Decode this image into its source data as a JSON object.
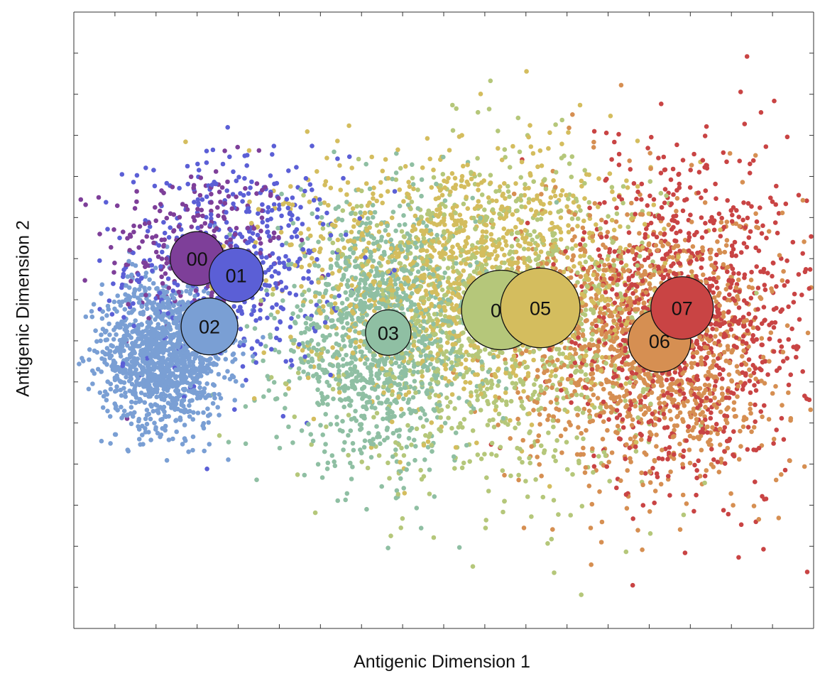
{
  "chart_data": {
    "type": "scatter",
    "xlabel": "Antigenic Dimension 1",
    "ylabel": "Antigenic Dimension 2",
    "xlim": [
      0,
      18
    ],
    "ylim": [
      0,
      15
    ],
    "grid": false,
    "tick_labels_shown": false,
    "point_count_approx": 8000,
    "clusters": [
      {
        "name": "00",
        "x": 3.0,
        "y": 9.0,
        "color": "#7e3f99"
      },
      {
        "name": "01",
        "x": 3.95,
        "y": 8.6,
        "color": "#5b5fd6"
      },
      {
        "name": "02",
        "x": 3.3,
        "y": 7.35,
        "color": "#7a9fd4"
      },
      {
        "name": "03",
        "x": 7.65,
        "y": 7.2,
        "color": "#8fbfa3"
      },
      {
        "name": "04",
        "x": 10.4,
        "y": 7.75,
        "color": "#b5c77a"
      },
      {
        "name": "05",
        "x": 11.35,
        "y": 7.8,
        "color": "#d4bd5e"
      },
      {
        "name": "06",
        "x": 14.25,
        "y": 7.0,
        "color": "#d68f52"
      },
      {
        "name": "07",
        "x": 14.8,
        "y": 7.8,
        "color": "#c94444"
      }
    ],
    "point_clouds": [
      {
        "name": "00",
        "x": 3.0,
        "y": 9.3,
        "sx": 1.1,
        "sy": 1.0,
        "n": 260,
        "color": "#7e3f99"
      },
      {
        "name": "01",
        "x": 3.9,
        "y": 8.9,
        "sx": 1.3,
        "sy": 1.3,
        "n": 500,
        "color": "#5b5fd6"
      },
      {
        "name": "02",
        "x": 2.2,
        "y": 6.7,
        "sx": 0.75,
        "sy": 0.9,
        "n": 1300,
        "color": "#7a9fd4"
      },
      {
        "name": "03",
        "x": 7.4,
        "y": 7.1,
        "sx": 1.2,
        "sy": 1.5,
        "n": 1200,
        "color": "#8fbfa3"
      },
      {
        "name": "04",
        "x": 10.4,
        "y": 7.5,
        "sx": 1.9,
        "sy": 1.9,
        "n": 1200,
        "color": "#b5c77a"
      },
      {
        "name": "05",
        "x": 9.5,
        "y": 8.6,
        "sx": 2.1,
        "sy": 1.5,
        "n": 1300,
        "color": "#d4bd5e"
      },
      {
        "name": "06",
        "x": 14.0,
        "y": 6.8,
        "sx": 1.6,
        "sy": 1.7,
        "n": 1200,
        "color": "#d68f52"
      },
      {
        "name": "07",
        "x": 15.0,
        "y": 7.6,
        "sx": 1.5,
        "sy": 2.0,
        "n": 1000,
        "color": "#c94444"
      }
    ]
  }
}
